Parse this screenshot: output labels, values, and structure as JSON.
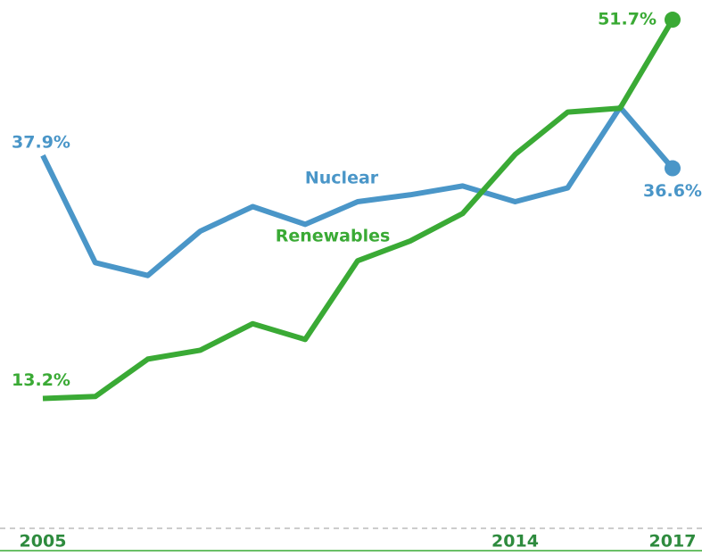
{
  "chart_data": {
    "type": "line",
    "categories": [
      "2005",
      null,
      null,
      null,
      null,
      null,
      null,
      null,
      null,
      "2014",
      null,
      null,
      "2017"
    ],
    "series": [
      {
        "name": "Nuclear",
        "color": "#4a96c8",
        "values": [
          37.9,
          27.0,
          25.7,
          30.2,
          32.7,
          30.9,
          33.2,
          33.9,
          34.8,
          33.2,
          34.6,
          42.8,
          36.6
        ],
        "value_labels": [
          "37.9%",
          null,
          null,
          null,
          null,
          null,
          null,
          null,
          null,
          null,
          null,
          null,
          "36.6%"
        ]
      },
      {
        "name": "Renewables",
        "color": "#3aaa35",
        "values": [
          13.2,
          13.4,
          17.2,
          18.1,
          20.8,
          19.2,
          27.2,
          29.2,
          32.0,
          38.0,
          42.3,
          42.7,
          51.7
        ],
        "value_labels": [
          "13.2%",
          null,
          null,
          null,
          null,
          null,
          null,
          null,
          null,
          null,
          null,
          null,
          "51.7%"
        ]
      }
    ],
    "ylim": [
      0,
      53.7
    ]
  }
}
